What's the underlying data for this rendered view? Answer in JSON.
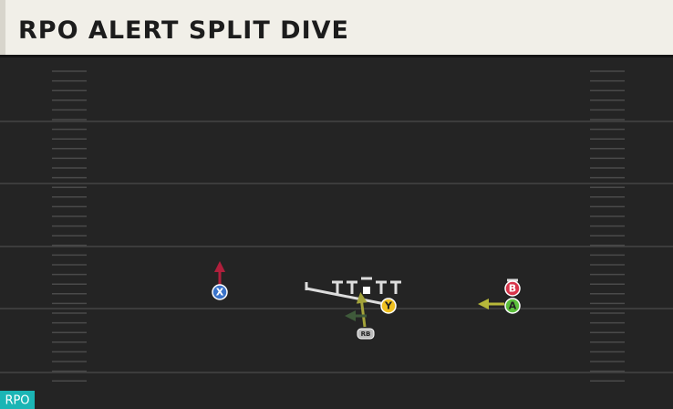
{
  "header": {
    "title": "RPO ALERT SPLIT DIVE"
  },
  "badge": "RPO",
  "players": [
    {
      "label": "X"
    },
    {
      "label": "Y"
    },
    {
      "label": "B"
    },
    {
      "label": "A"
    },
    {
      "label": "RB"
    }
  ]
}
